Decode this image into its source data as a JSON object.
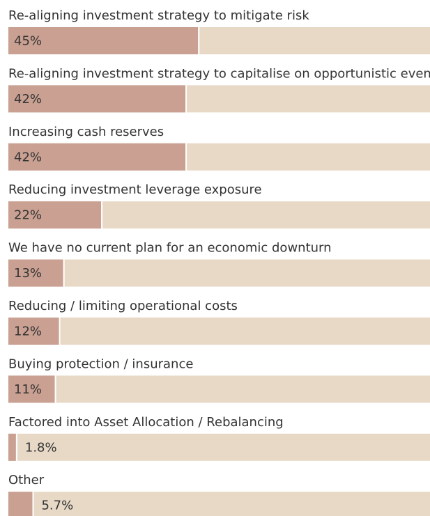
{
  "chart_data": {
    "type": "bar",
    "orientation": "horizontal",
    "categories": [
      "Re-aligning investment strategy to mitigate risk",
      "Re-aligning investment strategy to capitalise on opportunistic events",
      "Increasing cash reserves",
      "Reducing investment leverage exposure",
      "We have no current plan for an economic downturn",
      "Reducing / limiting operational costs",
      "Buying protection / insurance",
      "Factored into Asset Allocation / Rebalancing",
      "Other"
    ],
    "values": [
      45,
      42,
      42,
      22,
      13,
      12,
      11,
      1.8,
      5.7
    ],
    "value_labels": [
      "45%",
      "42%",
      "42%",
      "22%",
      "13%",
      "12%",
      "11%",
      "1.8%",
      "5.7%"
    ],
    "color": "#c9a092",
    "track_color": "#e8d9c7",
    "xlim": [
      0,
      100
    ]
  }
}
